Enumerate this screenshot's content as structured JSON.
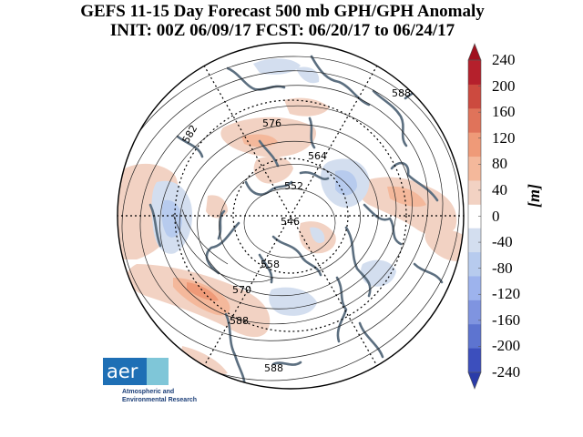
{
  "title": {
    "line1": "GEFS 11-15 Day Forecast 500 mb GPH/GPH Anomaly",
    "line2": "INIT: 00Z 06/09/17   FCST: 06/20/17 to 06/24/17"
  },
  "colorbar": {
    "ticks": [
      "240",
      "200",
      "160",
      "120",
      "80",
      "40",
      "0",
      "-40",
      "-80",
      "-120",
      "-160",
      "-200",
      "-240"
    ],
    "unit": "[m]",
    "positive_colors": [
      "#f2d2c3",
      "#f4b89b",
      "#ef9a78",
      "#e0735a",
      "#cc4a3f",
      "#b5202c"
    ],
    "negative_colors": [
      "#d3deef",
      "#b7cbee",
      "#9db3ed",
      "#7f94e0",
      "#5d74d0",
      "#3c4fbd"
    ]
  },
  "contour_labels": [
    "588",
    "582",
    "576",
    "564",
    "552",
    "546",
    "558",
    "570",
    "588",
    "588"
  ],
  "logo": {
    "name": "aer",
    "line1": "Atmospheric and",
    "line2": "Environmental Research"
  }
}
